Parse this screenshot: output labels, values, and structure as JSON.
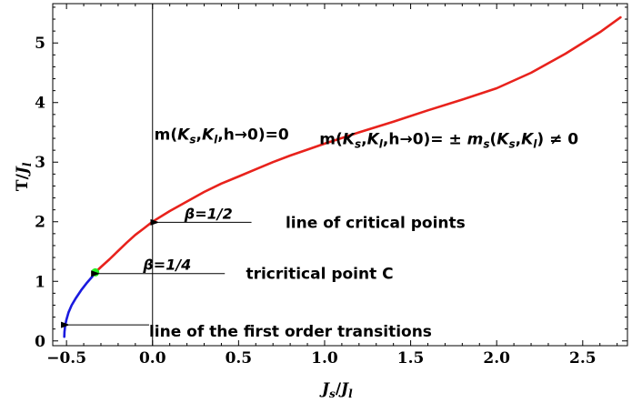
{
  "chart_data": {
    "type": "line",
    "xlabel": {
      "main": "J",
      "sub_num": "s",
      "sep": "/",
      "den": "J",
      "sub_den": "l"
    },
    "ylabel": {
      "main": "T",
      "sep": "/",
      "den": "J",
      "sub_den": "l"
    },
    "xlim": [
      -0.58,
      2.76
    ],
    "ylim": [
      -0.08,
      5.66
    ],
    "x_ticks": [
      {
        "value": -0.5,
        "label": "−0.5"
      },
      {
        "value": 0.0,
        "label": "0.0"
      },
      {
        "value": 0.5,
        "label": "0.5"
      },
      {
        "value": 1.0,
        "label": "1.0"
      },
      {
        "value": 1.5,
        "label": "1.5"
      },
      {
        "value": 2.0,
        "label": "2.0"
      },
      {
        "value": 2.5,
        "label": "2.5"
      }
    ],
    "y_ticks": [
      {
        "value": 0,
        "label": "0"
      },
      {
        "value": 1,
        "label": "1"
      },
      {
        "value": 2,
        "label": "2"
      },
      {
        "value": 3,
        "label": "3"
      },
      {
        "value": 4,
        "label": "4"
      },
      {
        "value": 5,
        "label": "5"
      }
    ],
    "vertical_line_x": 0.0,
    "series": [
      {
        "color": "#1a1adf",
        "points": [
          [
            -0.513,
            0.07
          ],
          [
            -0.512,
            0.15
          ],
          [
            -0.508,
            0.25
          ],
          [
            -0.5,
            0.36
          ],
          [
            -0.488,
            0.48
          ],
          [
            -0.47,
            0.6
          ],
          [
            -0.445,
            0.72
          ],
          [
            -0.415,
            0.85
          ],
          [
            -0.38,
            0.98
          ],
          [
            -0.35,
            1.08
          ],
          [
            -0.333,
            1.15
          ]
        ]
      },
      {
        "color": "#e8221c",
        "points": [
          [
            -0.333,
            1.15
          ],
          [
            -0.3,
            1.24
          ],
          [
            -0.25,
            1.37
          ],
          [
            -0.2,
            1.51
          ],
          [
            -0.15,
            1.65
          ],
          [
            -0.1,
            1.78
          ],
          [
            -0.05,
            1.89
          ],
          [
            0.0,
            2.0
          ],
          [
            0.1,
            2.18
          ],
          [
            0.2,
            2.34
          ],
          [
            0.3,
            2.5
          ],
          [
            0.4,
            2.64
          ],
          [
            0.5,
            2.76
          ],
          [
            0.6,
            2.88
          ],
          [
            0.7,
            3.0
          ],
          [
            0.8,
            3.11
          ],
          [
            0.9,
            3.21
          ],
          [
            1.0,
            3.31
          ],
          [
            1.2,
            3.5
          ],
          [
            1.4,
            3.68
          ],
          [
            1.6,
            3.87
          ],
          [
            1.8,
            4.05
          ],
          [
            2.0,
            4.24
          ],
          [
            2.2,
            4.5
          ],
          [
            2.4,
            4.82
          ],
          [
            2.6,
            5.18
          ],
          [
            2.72,
            5.43
          ]
        ]
      }
    ],
    "tricritical_point": {
      "x": -0.333,
      "y": 1.15,
      "color": "#22ee22"
    },
    "annotations": [
      {
        "id": "critical",
        "label": "line of critical points",
        "beta": "β=1/2",
        "target": [
          0.03,
          1.99
        ],
        "tail": [
          0.575,
          1.99
        ],
        "text_x": 0.72,
        "beta_x": 0.185
      },
      {
        "id": "tricritical",
        "label": "tricritical point C",
        "beta": "β=1/4",
        "target": [
          -0.315,
          1.13
        ],
        "tail": [
          0.42,
          1.13
        ],
        "text_x": 0.49,
        "beta_x": -0.055
      },
      {
        "id": "first-order",
        "label": "line of the first order transitions",
        "beta": "",
        "target": [
          -0.49,
          0.27
        ],
        "tail": [
          -0.02,
          0.27
        ],
        "text_x": -0.02,
        "beta_x": null
      }
    ],
    "region_labels": [
      {
        "id": "disordered",
        "parts": [
          "m(",
          "K",
          "s",
          ",",
          "K",
          "l",
          ",h→0)=0"
        ],
        "x": 0.01,
        "y": 3.38
      },
      {
        "id": "ordered",
        "parts": [
          "m(",
          "K",
          "s",
          ",",
          "K",
          "l",
          ",h→0)= ± ",
          "m",
          "s",
          "(",
          "K",
          "s",
          ",",
          "K",
          "l",
          ") ≠ 0"
        ],
        "x": 0.97,
        "y": 3.3
      }
    ]
  }
}
